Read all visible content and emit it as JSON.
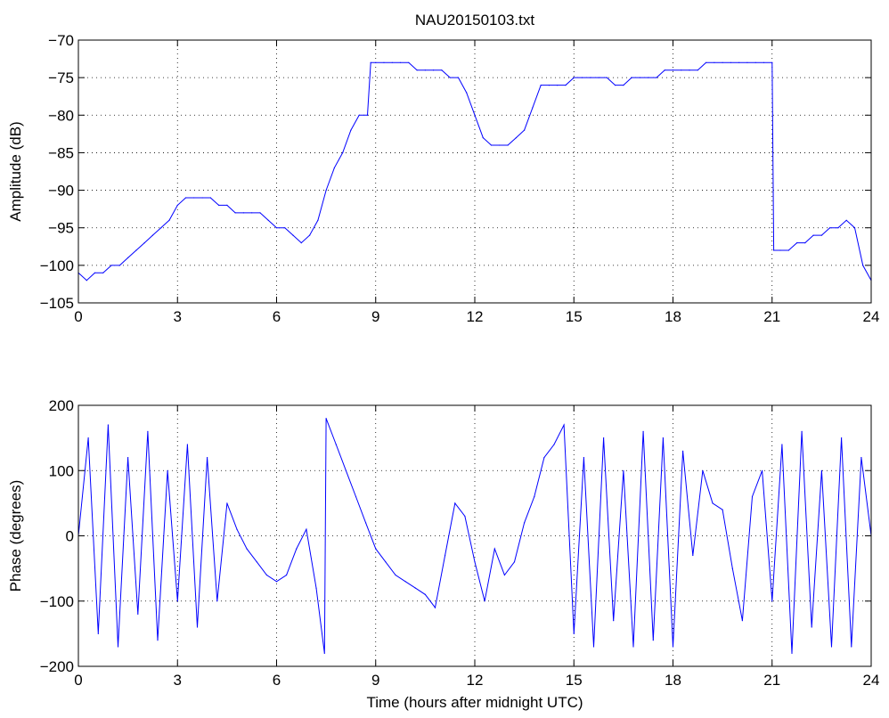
{
  "figure": {
    "title": "NAU20150103.txt"
  },
  "chart_data": [
    {
      "type": "line",
      "title": "NAU20150103.txt",
      "xlabel": "",
      "ylabel": "Amplitude (dB)",
      "xlim": [
        0,
        24
      ],
      "ylim": [
        -105,
        -70
      ],
      "xticks": [
        0,
        3,
        6,
        9,
        12,
        15,
        18,
        21,
        24
      ],
      "yticks": [
        -105,
        -100,
        -95,
        -90,
        -85,
        -80,
        -75,
        -70
      ],
      "grid": true,
      "line_color": "#0000ff",
      "series": [
        {
          "x": [
            0,
            0.25,
            0.5,
            0.75,
            1,
            1.25,
            1.5,
            1.75,
            2,
            2.25,
            2.5,
            2.75,
            3,
            3.25,
            3.5,
            3.75,
            4,
            4.25,
            4.5,
            4.75,
            5,
            5.25,
            5.5,
            5.75,
            6,
            6.25,
            6.5,
            6.75,
            7,
            7.25,
            7.5,
            7.75,
            8,
            8.25,
            8.5,
            8.75,
            8.85,
            9,
            9.25,
            9.5,
            9.75,
            10,
            10.25,
            10.5,
            10.75,
            11,
            11.25,
            11.5,
            11.75,
            12,
            12.25,
            12.5,
            12.75,
            13,
            13.25,
            13.5,
            13.75,
            14,
            14.25,
            14.5,
            14.75,
            15,
            15.25,
            15.5,
            15.75,
            16,
            16.25,
            16.5,
            16.75,
            17,
            17.25,
            17.5,
            17.75,
            18,
            18.25,
            18.5,
            18.75,
            19,
            19.25,
            19.5,
            19.75,
            20,
            20.25,
            20.5,
            20.75,
            21,
            21.05,
            21.25,
            21.5,
            21.75,
            22,
            22.25,
            22.5,
            22.75,
            23,
            23.25,
            23.5,
            23.75,
            24
          ],
          "y": [
            -101,
            -102,
            -101,
            -101,
            -100,
            -100,
            -99,
            -98,
            -97,
            -96,
            -95,
            -94,
            -92,
            -91,
            -91,
            -91,
            -91,
            -92,
            -92,
            -93,
            -93,
            -93,
            -93,
            -94,
            -95,
            -95,
            -96,
            -97,
            -96,
            -94,
            -90,
            -87,
            -85,
            -82,
            -80,
            -80,
            -73,
            -73,
            -73,
            -73,
            -73,
            -73,
            -74,
            -74,
            -74,
            -74,
            -75,
            -75,
            -77,
            -80,
            -83,
            -84,
            -84,
            -84,
            -83,
            -82,
            -79,
            -76,
            -76,
            -76,
            -76,
            -75,
            -75,
            -75,
            -75,
            -75,
            -76,
            -76,
            -75,
            -75,
            -75,
            -75,
            -74,
            -74,
            -74,
            -74,
            -74,
            -73,
            -73,
            -73,
            -73,
            -73,
            -73,
            -73,
            -73,
            -73,
            -98,
            -98,
            -98,
            -97,
            -97,
            -96,
            -96,
            -95,
            -95,
            -94,
            -95,
            -100,
            -102
          ]
        }
      ]
    },
    {
      "type": "line",
      "title": "",
      "xlabel": "Time (hours after midnight UTC)",
      "ylabel": "Phase (degrees)",
      "xlim": [
        0,
        24
      ],
      "ylim": [
        -200,
        200
      ],
      "xticks": [
        0,
        3,
        6,
        9,
        12,
        15,
        18,
        21,
        24
      ],
      "yticks": [
        -200,
        -100,
        0,
        100,
        200
      ],
      "grid": true,
      "line_color": "#0000ff",
      "series": [
        {
          "x": [
            0,
            0.3,
            0.6,
            0.9,
            1.2,
            1.5,
            1.8,
            2.1,
            2.4,
            2.7,
            3.0,
            3.3,
            3.6,
            3.9,
            4.2,
            4.5,
            4.8,
            5.1,
            5.4,
            5.7,
            6.0,
            6.3,
            6.6,
            6.9,
            7.2,
            7.45,
            7.5,
            7.8,
            8.1,
            8.4,
            8.7,
            9.0,
            9.3,
            9.6,
            9.9,
            10.2,
            10.5,
            10.8,
            11.1,
            11.4,
            11.7,
            12.0,
            12.3,
            12.6,
            12.9,
            13.2,
            13.5,
            13.8,
            14.1,
            14.4,
            14.7,
            15.0,
            15.3,
            15.6,
            15.9,
            16.2,
            16.5,
            16.8,
            17.1,
            17.4,
            17.7,
            18.0,
            18.3,
            18.6,
            18.9,
            19.2,
            19.5,
            19.8,
            20.1,
            20.4,
            20.7,
            21.0,
            21.3,
            21.6,
            21.9,
            22.2,
            22.5,
            22.8,
            23.1,
            23.4,
            23.7,
            24.0
          ],
          "y": [
            0,
            150,
            -150,
            170,
            -170,
            120,
            -120,
            160,
            -160,
            100,
            -100,
            140,
            -140,
            120,
            -100,
            50,
            10,
            -20,
            -40,
            -60,
            -70,
            -60,
            -20,
            10,
            -80,
            -180,
            180,
            140,
            100,
            60,
            20,
            -20,
            -40,
            -60,
            -70,
            -80,
            -90,
            -110,
            -30,
            50,
            30,
            -40,
            -100,
            -20,
            -60,
            -40,
            20,
            60,
            120,
            140,
            170,
            -150,
            120,
            -170,
            150,
            -130,
            100,
            -170,
            160,
            -160,
            150,
            -170,
            130,
            -30,
            100,
            50,
            40,
            -50,
            -130,
            60,
            100,
            -100,
            140,
            -180,
            160,
            -140,
            100,
            -170,
            150,
            -170,
            120,
            0
          ]
        }
      ]
    }
  ]
}
